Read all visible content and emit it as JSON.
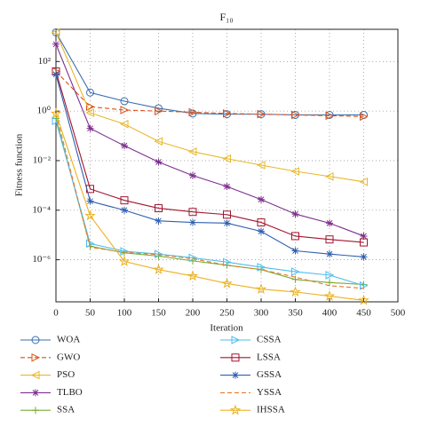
{
  "chart_data": {
    "type": "line",
    "title": "F₁₀",
    "xlabel": "Iteration",
    "ylabel": "Fitness function",
    "x": [
      0,
      50,
      100,
      150,
      200,
      250,
      300,
      350,
      400,
      450
    ],
    "xlim": [
      0,
      500
    ],
    "xticks": [
      0,
      50,
      100,
      150,
      200,
      250,
      300,
      350,
      400,
      450,
      500
    ],
    "ylog": true,
    "ylim": [
      2e-08,
      2000
    ],
    "yticks": [
      {
        "value": 1e-06,
        "label": "10⁻⁶"
      },
      {
        "value": 0.0001,
        "label": "10⁻⁴"
      },
      {
        "value": 0.01,
        "label": "10⁻²"
      },
      {
        "value": 1,
        "label": "10⁰"
      },
      {
        "value": 100,
        "label": "10²"
      }
    ],
    "grid": true,
    "legend": "bottom",
    "series": [
      {
        "name": "WOA",
        "color": "#3a6fb0",
        "marker": "circle",
        "values": [
          1500,
          5.6,
          2.5,
          1.3,
          0.8,
          0.75,
          0.75,
          0.7,
          0.7,
          0.7
        ]
      },
      {
        "name": "GWO",
        "color": "#d9541a",
        "marker": "triangle-right",
        "dash": true,
        "values": [
          40,
          1.5,
          1.1,
          1.0,
          0.9,
          0.8,
          0.75,
          0.7,
          0.65,
          0.6
        ]
      },
      {
        "name": "PSO",
        "color": "#e8b82a",
        "marker": "triangle-left",
        "values": [
          1500,
          0.85,
          0.3,
          0.06,
          0.023,
          0.012,
          0.0066,
          0.0037,
          0.0023,
          0.0014
        ]
      },
      {
        "name": "TLBO",
        "color": "#7e2f8e",
        "marker": "asterisk",
        "values": [
          500,
          0.2,
          0.04,
          0.0088,
          0.0025,
          0.0009,
          0.00027,
          7e-05,
          3e-05,
          9e-06
        ]
      },
      {
        "name": "SSA",
        "color": "#77ac30",
        "marker": "plus",
        "values": [
          0.5,
          3.5e-06,
          1.9e-06,
          1.4e-06,
          9e-07,
          6e-07,
          4e-07,
          1.6e-07,
          1.2e-07,
          1e-07
        ]
      },
      {
        "name": "CSSA",
        "color": "#4dbeee",
        "marker": "triangle-right",
        "values": [
          0.4,
          4.5e-06,
          2.2e-06,
          1.7e-06,
          1.2e-06,
          8e-07,
          5e-07,
          3.3e-07,
          2.4e-07,
          9e-08
        ]
      },
      {
        "name": "LSSA",
        "color": "#a2142f",
        "marker": "square",
        "values": [
          40,
          0.00072,
          0.00025,
          0.00012,
          8.5e-05,
          6.6e-05,
          3.2e-05,
          9e-06,
          6.6e-06,
          5e-06
        ]
      },
      {
        "name": "GSSA",
        "color": "#2f5fb0",
        "marker": "asterisk",
        "values": [
          30,
          0.00023,
          0.0001,
          3.7e-05,
          3.2e-05,
          3e-05,
          1.4e-05,
          2.3e-06,
          1.7e-06,
          1.3e-06
        ]
      },
      {
        "name": "YSSA",
        "color": "#e8792a",
        "marker": "none",
        "dash": true,
        "values": [
          0.8,
          3.2e-06,
          2e-06,
          1.6e-06,
          1.1e-06,
          6e-07,
          4e-07,
          2e-07,
          9e-08,
          7e-08
        ]
      },
      {
        "name": "IHSSA",
        "color": "#edb120",
        "marker": "star",
        "values": [
          0.8,
          6e-05,
          8.5e-07,
          4e-07,
          2.2e-07,
          1.1e-07,
          6.5e-08,
          5e-08,
          3.4e-08,
          2.3e-08
        ]
      }
    ]
  }
}
